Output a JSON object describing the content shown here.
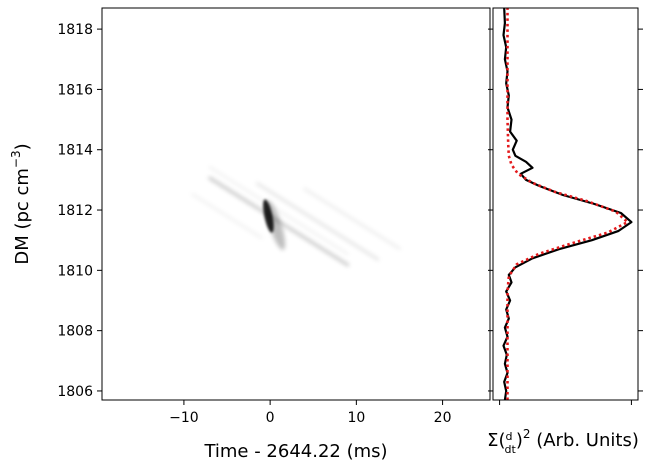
{
  "chart_data": [
    {
      "type": "heatmap",
      "colormap": "gray_r",
      "xlabel": "Time - 2644.22 (ms)",
      "ylabel": "DM (pc cm⁻³)",
      "ylabel_parts": {
        "main": "DM (pc cm",
        "sup": "−3",
        "close": ")"
      },
      "xlim": [
        -19.5,
        25.5
      ],
      "ylim": [
        1805.7,
        1818.7
      ],
      "x_ticks": [
        -10,
        0,
        10,
        20
      ],
      "x_tick_labels": [
        "−10",
        "0",
        "10",
        "20"
      ],
      "y_ticks": [
        1806,
        1808,
        1810,
        1812,
        1814,
        1816,
        1818
      ],
      "y_tick_labels": [
        "1806",
        "1808",
        "1810",
        "1812",
        "1814",
        "1816",
        "1818"
      ],
      "peak": {
        "time": 0,
        "dm": 1811.8
      },
      "grid": false
    },
    {
      "type": "line",
      "xlabel": "Σ(d/dt)² (Arb. Units)",
      "xlabel_parts": {
        "sigma": "Σ(",
        "num": "d",
        "den": "dt",
        "sup": "2",
        "rest": " (Arb. Units)"
      },
      "xlim": [
        -0.05,
        1.05
      ],
      "ylim": [
        1805.7,
        1818.7
      ],
      "x_ticks": [
        0,
        1
      ],
      "series": [
        {
          "color": "#000000",
          "style": "solid",
          "points": [
            [
              0.04,
              1805.7
            ],
            [
              0.05,
              1806.0
            ],
            [
              0.035,
              1806.3
            ],
            [
              0.06,
              1806.6
            ],
            [
              0.04,
              1806.9
            ],
            [
              0.055,
              1807.2
            ],
            [
              0.03,
              1807.5
            ],
            [
              0.06,
              1807.8
            ],
            [
              0.04,
              1808.1
            ],
            [
              0.07,
              1808.4
            ],
            [
              0.05,
              1808.7
            ],
            [
              0.08,
              1809.0
            ],
            [
              0.05,
              1809.3
            ],
            [
              0.09,
              1809.6
            ],
            [
              0.07,
              1809.85
            ],
            [
              0.12,
              1810.1
            ],
            [
              0.25,
              1810.4
            ],
            [
              0.45,
              1810.7
            ],
            [
              0.7,
              1811.0
            ],
            [
              0.9,
              1811.3
            ],
            [
              1.0,
              1811.6
            ],
            [
              0.92,
              1811.9
            ],
            [
              0.72,
              1812.2
            ],
            [
              0.48,
              1812.5
            ],
            [
              0.3,
              1812.8
            ],
            [
              0.2,
              1813.0
            ],
            [
              0.16,
              1813.2
            ],
            [
              0.25,
              1813.4
            ],
            [
              0.2,
              1813.6
            ],
            [
              0.12,
              1813.8
            ],
            [
              0.1,
              1814.0
            ],
            [
              0.13,
              1814.3
            ],
            [
              0.08,
              1814.6
            ],
            [
              0.09,
              1815.0
            ],
            [
              0.06,
              1815.4
            ],
            [
              0.07,
              1815.8
            ],
            [
              0.05,
              1816.2
            ],
            [
              0.06,
              1816.6
            ],
            [
              0.04,
              1817.0
            ],
            [
              0.05,
              1817.4
            ],
            [
              0.03,
              1817.8
            ],
            [
              0.04,
              1818.2
            ],
            [
              0.035,
              1818.7
            ]
          ]
        },
        {
          "color": "#e41a1c",
          "style": "dotted",
          "points": [
            [
              0.06,
              1805.7
            ],
            [
              0.06,
              1806.5
            ],
            [
              0.06,
              1807.5
            ],
            [
              0.06,
              1808.5
            ],
            [
              0.06,
              1809.3
            ],
            [
              0.07,
              1809.8
            ],
            [
              0.13,
              1810.2
            ],
            [
              0.3,
              1810.55
            ],
            [
              0.55,
              1810.9
            ],
            [
              0.82,
              1811.25
            ],
            [
              0.97,
              1811.6
            ],
            [
              0.88,
              1811.95
            ],
            [
              0.66,
              1812.3
            ],
            [
              0.42,
              1812.6
            ],
            [
              0.25,
              1812.9
            ],
            [
              0.14,
              1813.2
            ],
            [
              0.09,
              1813.5
            ],
            [
              0.07,
              1813.8
            ],
            [
              0.065,
              1814.2
            ],
            [
              0.06,
              1815.0
            ],
            [
              0.06,
              1816.0
            ],
            [
              0.06,
              1817.0
            ],
            [
              0.06,
              1818.7
            ]
          ]
        }
      ]
    }
  ]
}
